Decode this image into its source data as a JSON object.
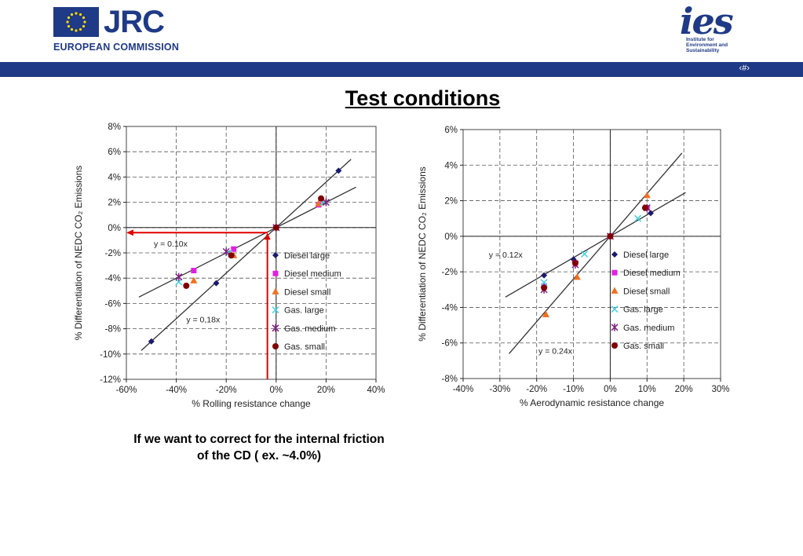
{
  "header": {
    "org_logo_text": "JRC",
    "org_subtitle": "EUROPEAN COMMISSION",
    "institute_logo_text": "ies",
    "institute_subtitle": [
      "Institute for",
      "Environment and",
      "Sustainability"
    ],
    "page_number": "‹#›",
    "brand_color": "#1f3a86"
  },
  "slide_title": "Test conditions",
  "caption": [
    "If we want to correct for the internal friction",
    "of the CD ( ex. ~4.0%)"
  ],
  "chart_data": [
    {
      "type": "scatter",
      "xlabel": "% Rolling resistance change",
      "ylabel": "% Differentiation of NEDC CO₂ Emissions",
      "xlim": [
        -60,
        40
      ],
      "ylim": [
        -12,
        8
      ],
      "xticks": [
        -60,
        -40,
        -20,
        0,
        20,
        40
      ],
      "yticks": [
        -12,
        -10,
        -8,
        -6,
        -4,
        -2,
        0,
        2,
        4,
        6,
        8
      ],
      "tick_format": "%",
      "grid": "dashed",
      "legend_position": "right-lower",
      "annotations": [
        {
          "text": "y = 0.10x",
          "at": [
            -49,
            -1.5
          ]
        },
        {
          "text": "y = 0,18x",
          "at": [
            -36,
            -7.5
          ]
        }
      ],
      "fit_lines": [
        {
          "slope": 0.1,
          "x_range": [
            -55,
            32
          ]
        },
        {
          "slope": 0.18,
          "x_range": [
            -54,
            30
          ]
        }
      ],
      "highlight": {
        "color": "#e00000",
        "vertical_arrow": {
          "x": -3.5,
          "from_y": -12,
          "to_y": -0.4
        },
        "horizontal_arrow": {
          "y": -0.4,
          "from_x": -3.5,
          "to_x": -60
        }
      },
      "series": [
        {
          "name": "Diesel large",
          "marker": "diamond",
          "color": "#1a1a6e",
          "points": [
            [
              -50,
              -9.0
            ],
            [
              -24,
              -4.4
            ],
            [
              0,
              0
            ],
            [
              25,
              4.5
            ]
          ]
        },
        {
          "name": "Diesel medium",
          "marker": "square",
          "color": "#e020e0",
          "points": [
            [
              -33,
              -3.4
            ],
            [
              -17,
              -1.7
            ],
            [
              0,
              0
            ],
            [
              17,
              1.8
            ]
          ]
        },
        {
          "name": "Diesel small",
          "marker": "triangle",
          "color": "#f07020",
          "points": [
            [
              -33,
              -4.2
            ],
            [
              -17,
              -2.2
            ],
            [
              0,
              0
            ],
            [
              17,
              1.9
            ]
          ]
        },
        {
          "name": "Gas. large",
          "marker": "x",
          "color": "#40d0e0",
          "points": [
            [
              -39,
              -4.3
            ],
            [
              -19,
              -2.0
            ],
            [
              0,
              0
            ],
            [
              19,
              2.0
            ]
          ]
        },
        {
          "name": "Gas. medium",
          "marker": "star",
          "color": "#802080",
          "points": [
            [
              -39,
              -3.9
            ],
            [
              -20,
              -1.9
            ],
            [
              0,
              0
            ],
            [
              20,
              2.0
            ]
          ]
        },
        {
          "name": "Gas. small",
          "marker": "circle",
          "color": "#800000",
          "points": [
            [
              -36,
              -4.6
            ],
            [
              -18,
              -2.2
            ],
            [
              0,
              0
            ],
            [
              18,
              2.3
            ]
          ]
        }
      ]
    },
    {
      "type": "scatter",
      "xlabel": "% Aerodynamic resistance change",
      "ylabel": "% Differentiation of NEDC CO₂ Emissions",
      "xlim": [
        -40,
        30
      ],
      "ylim": [
        -8,
        6
      ],
      "xticks": [
        -40,
        -30,
        -20,
        -10,
        0,
        10,
        20,
        30
      ],
      "yticks": [
        -8,
        -6,
        -4,
        -2,
        0,
        2,
        4,
        6
      ],
      "tick_format": "%",
      "grid": "dashed",
      "legend_position": "right-lower",
      "annotations": [
        {
          "text": "y = 0.12x",
          "at": [
            -33,
            -1.2
          ]
        },
        {
          "text": "y = 0.24x",
          "at": [
            -19.5,
            -6.6
          ]
        }
      ],
      "fit_lines": [
        {
          "slope": 0.12,
          "x_range": [
            -28.5,
            20.5
          ]
        },
        {
          "slope": 0.24,
          "x_range": [
            -27.5,
            19.5
          ]
        }
      ],
      "series": [
        {
          "name": "Diesel large",
          "marker": "diamond",
          "color": "#1a1a6e",
          "points": [
            [
              -18,
              -2.2
            ],
            [
              -10,
              -1.3
            ],
            [
              0,
              0
            ],
            [
              11,
              1.3
            ]
          ]
        },
        {
          "name": "Diesel medium",
          "marker": "square",
          "color": "#e020e0",
          "points": [
            [
              -18,
              -2.8
            ],
            [
              -9.5,
              -1.5
            ],
            [
              0,
              0
            ],
            [
              10,
              1.6
            ]
          ]
        },
        {
          "name": "Diesel small",
          "marker": "triangle",
          "color": "#f07020",
          "points": [
            [
              -17.5,
              -4.4
            ],
            [
              -9,
              -2.3
            ],
            [
              0,
              0
            ],
            [
              10,
              2.3
            ]
          ]
        },
        {
          "name": "Gas. large",
          "marker": "x",
          "color": "#40d0e0",
          "points": [
            [
              -18,
              -2.6
            ],
            [
              -7,
              -1.0
            ],
            [
              0,
              0
            ],
            [
              7.5,
              1.0
            ]
          ]
        },
        {
          "name": "Gas. medium",
          "marker": "star",
          "color": "#802080",
          "points": [
            [
              -18,
              -3.0
            ],
            [
              -9.5,
              -1.6
            ],
            [
              0,
              0
            ],
            [
              10,
              1.6
            ]
          ]
        },
        {
          "name": "Gas. small",
          "marker": "circle",
          "color": "#800000",
          "points": [
            [
              -18,
              -2.9
            ],
            [
              -9.5,
              -1.5
            ],
            [
              0,
              0
            ],
            [
              9.5,
              1.6
            ]
          ]
        }
      ]
    }
  ]
}
